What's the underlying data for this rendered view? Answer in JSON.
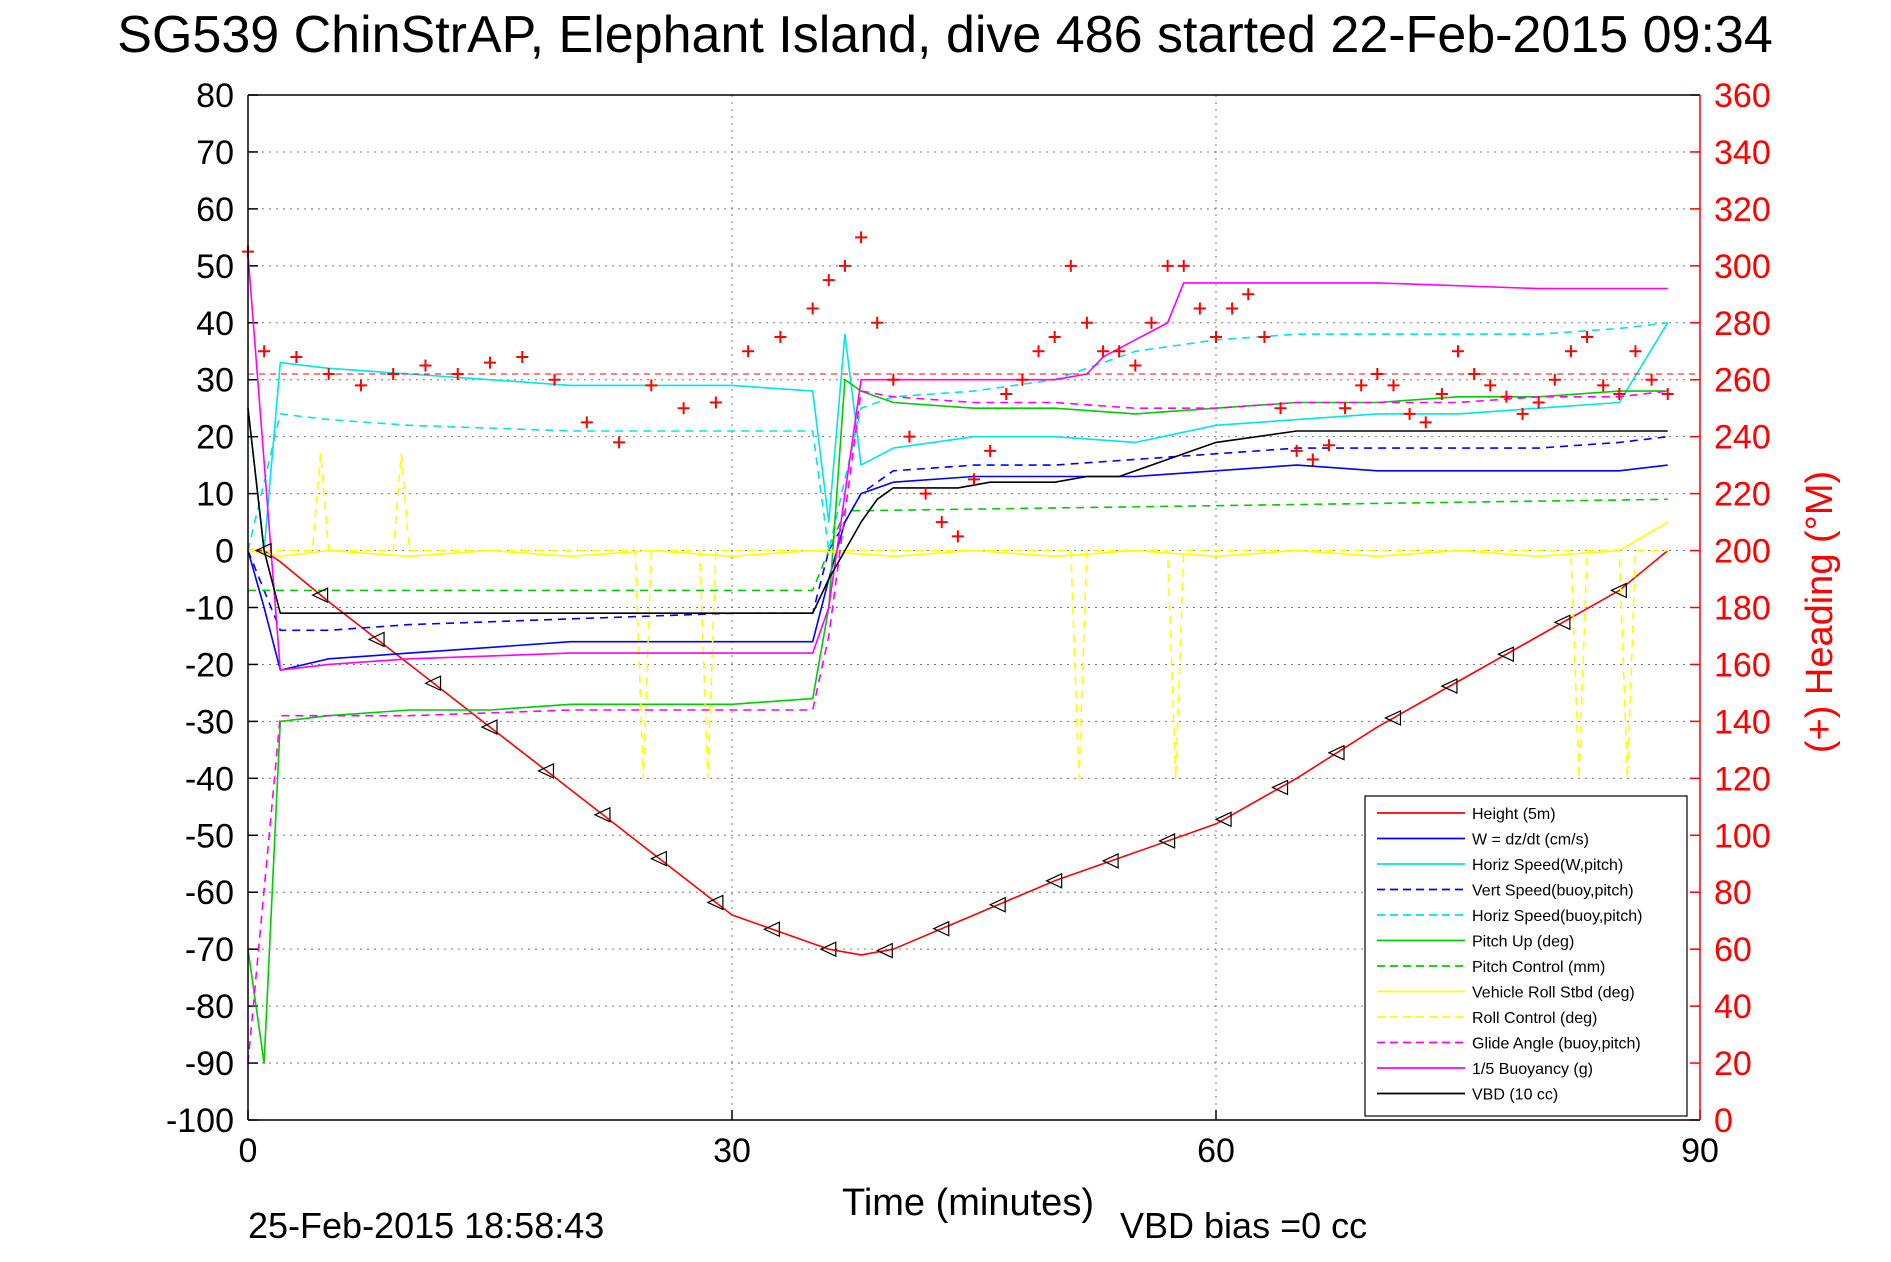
{
  "title": "SG539 ChinStrAP, Elephant Island, dive 486 started 22-Feb-2015 09:34",
  "footer": {
    "timestamp": "25-Feb-2015 18:58:43",
    "vbd_bias": "VBD bias =0 cc"
  },
  "chart_data": {
    "type": "line",
    "title": "SG539 ChinStrAP, Elephant Island, dive 486 started 22-Feb-2015 09:34",
    "xlabel": "Time (minutes)",
    "ylabel": "",
    "ylabel_right": "(+) Heading (°M)",
    "xlim": [
      0,
      90
    ],
    "ylim": [
      -100,
      80
    ],
    "ylim_right": [
      0,
      360
    ],
    "x_ticks": [
      "0",
      "30",
      "60",
      "90"
    ],
    "y_ticks": [
      "80",
      "70",
      "60",
      "50",
      "40",
      "30",
      "20",
      "10",
      "0",
      "-10",
      "-20",
      "-30",
      "-40",
      "-50",
      "-60",
      "-70",
      "-80",
      "-90",
      "-100"
    ],
    "y_ticks_right": [
      "360",
      "340",
      "320",
      "300",
      "280",
      "260",
      "240",
      "220",
      "200",
      "180",
      "160",
      "140",
      "120",
      "100",
      "80",
      "60",
      "40",
      "20",
      "0"
    ],
    "grid": true,
    "legend_position": "bottom-right",
    "series": [
      {
        "name": "Height (5m)",
        "color": "#ff0000",
        "style": "solid",
        "x": [
          0,
          1,
          2,
          5,
          10,
          15,
          20,
          25,
          30,
          33,
          36,
          38,
          40,
          45,
          50,
          55,
          60,
          65,
          70,
          75,
          80,
          85,
          88
        ],
        "y": [
          0,
          0,
          -2,
          -9,
          -20,
          -31,
          -42,
          -53,
          -64,
          -67,
          -70,
          -71,
          -70,
          -64,
          -58,
          -53,
          -48,
          -40,
          -31,
          -23,
          -15,
          -7,
          0
        ]
      },
      {
        "name": "W = dz/dt (cm/s)",
        "color": "#0000ff",
        "style": "solid",
        "x": [
          0,
          1,
          2,
          5,
          10,
          15,
          20,
          25,
          30,
          35,
          36,
          37,
          38,
          40,
          45,
          50,
          55,
          60,
          65,
          70,
          75,
          80,
          85,
          88
        ],
        "y": [
          0,
          -10,
          -21,
          -19,
          -18,
          -17,
          -16,
          -16,
          -16,
          -16,
          -5,
          5,
          10,
          12,
          13,
          13,
          13,
          14,
          15,
          14,
          14,
          14,
          14,
          15
        ]
      },
      {
        "name": "Horiz Speed(W,pitch)",
        "color": "#00e5e5",
        "style": "solid",
        "x": [
          0,
          1,
          2,
          5,
          10,
          15,
          20,
          25,
          30,
          35,
          36,
          37,
          38,
          40,
          45,
          50,
          55,
          60,
          65,
          70,
          75,
          80,
          85,
          88
        ],
        "y": [
          25,
          0,
          33,
          32,
          31,
          30,
          29,
          29,
          29,
          28,
          5,
          38,
          15,
          18,
          20,
          20,
          19,
          22,
          23,
          24,
          24,
          25,
          26,
          40
        ]
      },
      {
        "name": "Vert Speed(buoy,pitch)",
        "color": "#0000ff",
        "style": "dashed",
        "x": [
          0,
          2,
          5,
          10,
          20,
          30,
          35,
          36,
          38,
          40,
          45,
          50,
          55,
          60,
          65,
          70,
          75,
          80,
          85,
          88
        ],
        "y": [
          0,
          -14,
          -14,
          -13,
          -12,
          -11,
          -11,
          0,
          10,
          14,
          15,
          15,
          16,
          17,
          18,
          18,
          18,
          18,
          19,
          20
        ]
      },
      {
        "name": "Horiz Speed(buoy,pitch)",
        "color": "#00e5e5",
        "style": "dashed",
        "x": [
          0,
          2,
          5,
          10,
          20,
          30,
          35,
          36,
          38,
          40,
          45,
          50,
          55,
          60,
          65,
          70,
          75,
          80,
          85,
          88
        ],
        "y": [
          0,
          24,
          23,
          22,
          21,
          21,
          21,
          0,
          25,
          27,
          28,
          30,
          35,
          37,
          38,
          38,
          38,
          38,
          39,
          40
        ]
      },
      {
        "name": "Pitch Up (deg)",
        "color": "#00cc00",
        "style": "solid",
        "x": [
          0,
          1,
          2,
          5,
          10,
          15,
          20,
          25,
          30,
          35,
          36,
          37,
          38,
          40,
          45,
          50,
          55,
          60,
          65,
          70,
          75,
          80,
          85,
          88
        ],
        "y": [
          -70,
          -90,
          -30,
          -29,
          -28,
          -28,
          -27,
          -27,
          -27,
          -26,
          -10,
          30,
          28,
          26,
          25,
          25,
          24,
          25,
          26,
          26,
          27,
          27,
          28,
          28
        ]
      },
      {
        "name": "Pitch Control (mm)",
        "color": "#00cc00",
        "style": "dashed",
        "x": [
          0,
          2,
          35,
          37,
          38,
          88
        ],
        "y": [
          -7,
          -7,
          -7,
          7,
          7,
          9
        ]
      },
      {
        "name": "Vehicle Roll Stbd (deg)",
        "color": "#ffff00",
        "style": "solid",
        "x": [
          0,
          2,
          5,
          10,
          15,
          20,
          25,
          30,
          35,
          40,
          45,
          50,
          55,
          60,
          65,
          70,
          75,
          80,
          85,
          88
        ],
        "y": [
          0,
          -1,
          0,
          -1,
          0,
          -1,
          0,
          -1,
          0,
          -1,
          0,
          -1,
          0,
          -1,
          0,
          -1,
          0,
          -1,
          0,
          5
        ]
      },
      {
        "name": "Roll Control (deg)",
        "color": "#ffff00",
        "style": "dashed",
        "x": [
          0,
          4,
          4.5,
          5,
          9,
          9.5,
          10,
          24,
          24.5,
          25,
          28,
          28.5,
          29,
          51,
          51.5,
          52,
          57,
          57.5,
          58,
          82,
          82.5,
          83,
          85,
          85.5,
          86,
          88
        ],
        "y": [
          0,
          0,
          17,
          0,
          0,
          17,
          0,
          0,
          -40,
          0,
          0,
          -40,
          0,
          0,
          -40,
          0,
          0,
          -40,
          0,
          0,
          -40,
          0,
          0,
          -40,
          0,
          0
        ]
      },
      {
        "name": "Glide Angle (buoy,pitch)",
        "color": "#ff00ff",
        "style": "dashed",
        "x": [
          0,
          2,
          5,
          10,
          20,
          30,
          35,
          36,
          38,
          40,
          45,
          50,
          55,
          60,
          65,
          70,
          75,
          80,
          85,
          88
        ],
        "y": [
          -90,
          -29,
          -29,
          -29,
          -28,
          -28,
          -28,
          -15,
          28,
          27,
          26,
          26,
          25,
          25,
          26,
          26,
          26,
          27,
          27,
          28
        ]
      },
      {
        "name": "1/5 Buoyancy (g)",
        "color": "#ff00ff",
        "style": "solid",
        "x": [
          0,
          2,
          5,
          10,
          20,
          30,
          35,
          36,
          38,
          40,
          45,
          50,
          52,
          53,
          57,
          58,
          60,
          65,
          70,
          80,
          88
        ],
        "y": [
          52,
          -21,
          -20,
          -19,
          -18,
          -18,
          -18,
          -10,
          30,
          30,
          30,
          30,
          31,
          34,
          40,
          47,
          47,
          47,
          47,
          46,
          46
        ]
      },
      {
        "name": "VBD (10 cc)",
        "color": "#000000",
        "style": "solid",
        "x": [
          0,
          1,
          2,
          10,
          20,
          30,
          35,
          36,
          37,
          38,
          39,
          40,
          42,
          44,
          46,
          48,
          50,
          52,
          54,
          56,
          58,
          60,
          65,
          70,
          75,
          80,
          85,
          88
        ],
        "y": [
          25,
          0,
          -11,
          -11,
          -11,
          -11,
          -11,
          -5,
          0,
          5,
          9,
          11,
          11,
          11,
          12,
          12,
          12,
          13,
          13,
          15,
          17,
          19,
          21,
          21,
          21,
          21,
          21,
          21
        ]
      },
      {
        "name": "(+) Heading (°M)",
        "color": "#ff0000",
        "style": "markers",
        "axis": "right",
        "x": [
          0,
          1,
          3,
          5,
          7,
          9,
          11,
          13,
          15,
          17,
          19,
          21,
          23,
          25,
          27,
          29,
          31,
          33,
          35,
          36,
          37,
          38,
          39,
          40,
          41,
          42,
          43,
          44,
          45,
          46,
          47,
          48,
          49,
          50,
          51,
          52,
          53,
          54,
          55,
          56,
          57,
          58,
          59,
          60,
          61,
          62,
          63,
          64,
          65,
          66,
          67,
          68,
          69,
          70,
          71,
          72,
          73,
          74,
          75,
          76,
          77,
          78,
          79,
          80,
          81,
          82,
          83,
          84,
          85,
          86,
          87,
          88
        ],
        "y": [
          305,
          270,
          268,
          262,
          258,
          262,
          265,
          262,
          266,
          268,
          260,
          245,
          238,
          258,
          250,
          252,
          270,
          275,
          285,
          295,
          300,
          310,
          280,
          260,
          240,
          220,
          210,
          205,
          225,
          235,
          255,
          260,
          270,
          275,
          300,
          280,
          270,
          270,
          265,
          280,
          300,
          300,
          285,
          275,
          285,
          290,
          275,
          250,
          235,
          232,
          237,
          250,
          258,
          262,
          258,
          248,
          245,
          255,
          270,
          262,
          258,
          254,
          248,
          252,
          260,
          270,
          275,
          258,
          255,
          270,
          260,
          255
        ]
      }
    ]
  }
}
